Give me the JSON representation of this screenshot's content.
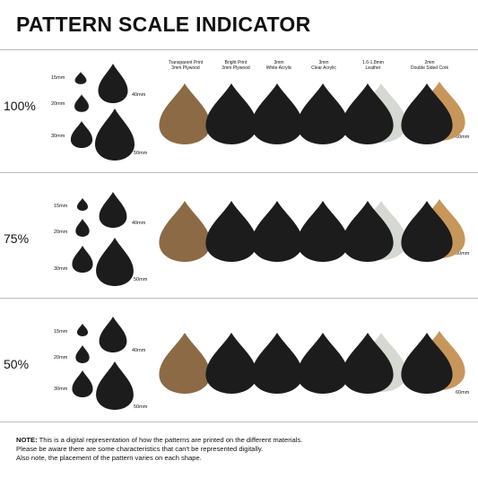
{
  "title": "PATTERN SCALE INDICATOR",
  "materials": [
    {
      "line1": "Transparent Print",
      "line2": "3mm Plywood"
    },
    {
      "line1": "Bright Print",
      "line2": "3mm Plywood"
    },
    {
      "line1": "3mm",
      "line2": "White Acrylic"
    },
    {
      "line1": "3mm",
      "line2": "Clear Acrylic"
    },
    {
      "line1": "1.6-1.8mm",
      "line2": "Leather"
    },
    {
      "line1": "2mm",
      "line2": "Double Sided Cork"
    }
  ],
  "scales": [
    {
      "percent": "100%",
      "sizes": [
        "15mm",
        "20mm",
        "30mm",
        "40mm",
        "50mm"
      ],
      "side_label": "60mm"
    },
    {
      "percent": "75%",
      "sizes": [
        "15mm",
        "20mm",
        "30mm",
        "40mm",
        "50mm"
      ],
      "side_label": "60mm"
    },
    {
      "percent": "50%",
      "sizes": [
        "15mm",
        "20mm",
        "30mm",
        "40mm",
        "50mm"
      ],
      "side_label": "60mm"
    }
  ],
  "note": {
    "label": "NOTE:",
    "line1": "This is a digital representation of how the patterns are printed on the different materials.",
    "line2": "Please be aware there are some characteristics that can't be represented digitally.",
    "line3": "Also note, the placement of the pattern varies on each shape."
  },
  "colors": {
    "plywood": "#8c6a45",
    "dark": "#1c1c1c",
    "leather": "#d6d8d2",
    "cork": "#c7965a",
    "band_bg": "#ffffff"
  }
}
